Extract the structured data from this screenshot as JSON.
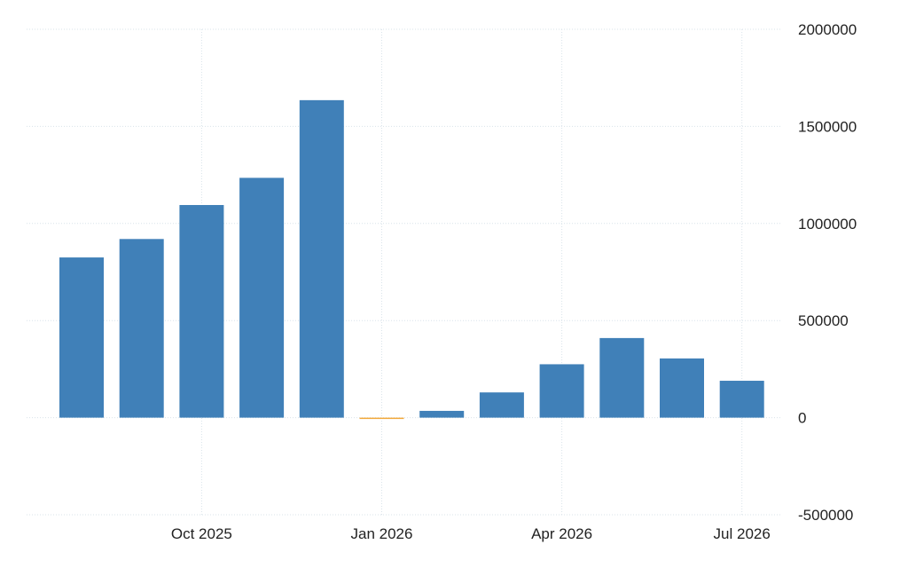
{
  "chart_data": {
    "type": "bar",
    "title": "",
    "xlabel": "",
    "ylabel": "",
    "categories": [
      "2025-08",
      "2025-09",
      "2025-10",
      "2025-11",
      "2025-12",
      "2026-01",
      "2026-02",
      "2026-03",
      "2026-04",
      "2026-05",
      "2026-06",
      "2026-07"
    ],
    "values": [
      825000,
      920000,
      1095000,
      1235000,
      1635000,
      -5000,
      35000,
      130000,
      275000,
      410000,
      305000,
      190000
    ],
    "ylim": [
      -500000,
      2000000
    ],
    "yticks": [
      2000000,
      1500000,
      1000000,
      500000,
      0,
      -500000
    ],
    "ytick_labels": [
      "2000000",
      "1500000",
      "1000000",
      "500000",
      "0",
      "-500000"
    ],
    "xticks": [
      {
        "at": "2025-10",
        "label": "Oct 2025"
      },
      {
        "at": "2026-01",
        "label": "Jan 2026"
      },
      {
        "at": "2026-04",
        "label": "Apr 2026"
      },
      {
        "at": "2026-07",
        "label": "Jul 2026"
      }
    ],
    "y_axis_position": "right",
    "grid": true,
    "colors": {
      "positive": "#4080b8",
      "negative": "#f2a93b",
      "grid": "#d9e3ea",
      "text": "#222222"
    }
  }
}
